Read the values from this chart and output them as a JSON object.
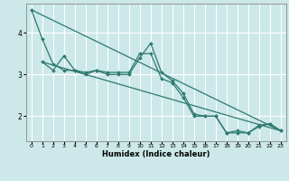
{
  "title": "",
  "xlabel": "Humidex (Indice chaleur)",
  "ylabel": "",
  "background_color": "#cce8e8",
  "grid_color": "#ffffff",
  "line_color": "#2d7a6e",
  "xlim": [
    -0.5,
    23.5
  ],
  "ylim": [
    1.4,
    4.7
  ],
  "xticks": [
    0,
    1,
    2,
    3,
    4,
    5,
    6,
    7,
    8,
    9,
    10,
    11,
    12,
    13,
    14,
    15,
    16,
    17,
    18,
    19,
    20,
    21,
    22,
    23
  ],
  "yticks": [
    2,
    3,
    4
  ],
  "line1_x": [
    0,
    1,
    2,
    3,
    4,
    5,
    6,
    7,
    8,
    9,
    10,
    11,
    12,
    13,
    14,
    15,
    16,
    17,
    18,
    19,
    20,
    21,
    22,
    23
  ],
  "line1_y": [
    4.55,
    3.85,
    3.25,
    3.1,
    3.1,
    3.0,
    3.1,
    3.0,
    3.0,
    3.0,
    3.4,
    3.75,
    3.05,
    2.85,
    2.55,
    2.05,
    2.0,
    2.0,
    1.6,
    1.65,
    1.6,
    1.78,
    1.82,
    1.65
  ],
  "line2_x": [
    1,
    2,
    3,
    4,
    5,
    6,
    7,
    8,
    9,
    10,
    11,
    12,
    13,
    14,
    15,
    16,
    17,
    18,
    19,
    20,
    21,
    22,
    23
  ],
  "line2_y": [
    3.3,
    3.1,
    3.45,
    3.1,
    3.05,
    3.1,
    3.05,
    3.05,
    3.05,
    3.5,
    3.5,
    2.9,
    2.8,
    2.45,
    2.0,
    2.0,
    2.0,
    1.6,
    1.6,
    1.6,
    1.75,
    1.82,
    1.65
  ],
  "trend1_x": [
    0,
    23
  ],
  "trend1_y": [
    4.55,
    1.65
  ],
  "trend2_x": [
    1,
    23
  ],
  "trend2_y": [
    3.3,
    1.65
  ]
}
